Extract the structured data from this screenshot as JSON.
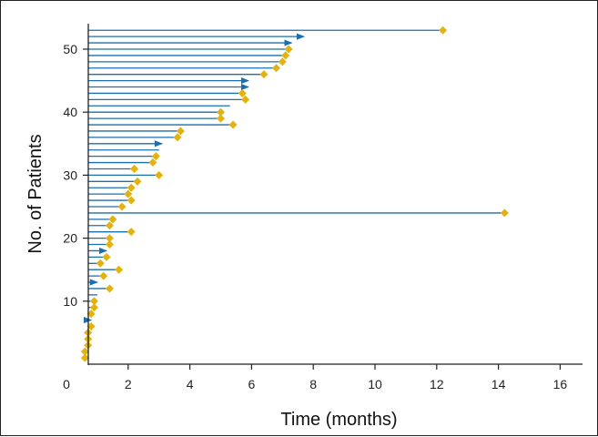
{
  "chart_data": {
    "type": "swimmer",
    "xlabel": "Time (months)",
    "ylabel": "No. of Patients",
    "xlim": [
      0,
      16
    ],
    "ylim": [
      0,
      55
    ],
    "xticks": [
      0,
      2,
      4,
      6,
      8,
      10,
      12,
      14,
      16
    ],
    "yticks": [
      10,
      20,
      30,
      40,
      50
    ],
    "grid": false,
    "colors": {
      "bar": "#1a6fb0",
      "marker": "#e3b20f",
      "axis": "#222222"
    },
    "patients": [
      {
        "id": 1,
        "duration": 0.6,
        "event": 0.6,
        "ongoing": false
      },
      {
        "id": 2,
        "duration": 0.6,
        "event": 0.6,
        "ongoing": false
      },
      {
        "id": 3,
        "duration": 0.7,
        "event": 0.7,
        "ongoing": false
      },
      {
        "id": 4,
        "duration": 0.7,
        "event": 0.7,
        "ongoing": false
      },
      {
        "id": 5,
        "duration": 0.7,
        "event": 0.7,
        "ongoing": false
      },
      {
        "id": 6,
        "duration": 0.8,
        "event": 0.8,
        "ongoing": false
      },
      {
        "id": 7,
        "duration": 0.8,
        "event": null,
        "ongoing": true
      },
      {
        "id": 8,
        "duration": 0.8,
        "event": 0.8,
        "ongoing": false
      },
      {
        "id": 9,
        "duration": 0.9,
        "event": 0.9,
        "ongoing": false
      },
      {
        "id": 10,
        "duration": 0.9,
        "event": 0.9,
        "ongoing": false
      },
      {
        "id": 11,
        "duration": 1.0,
        "event": null,
        "ongoing": false
      },
      {
        "id": 12,
        "duration": 1.4,
        "event": 1.4,
        "ongoing": false
      },
      {
        "id": 13,
        "duration": 1.0,
        "event": null,
        "ongoing": true
      },
      {
        "id": 14,
        "duration": 1.2,
        "event": 1.2,
        "ongoing": false
      },
      {
        "id": 15,
        "duration": 1.7,
        "event": 1.7,
        "ongoing": false
      },
      {
        "id": 16,
        "duration": 1.1,
        "event": 1.1,
        "ongoing": false
      },
      {
        "id": 17,
        "duration": 1.3,
        "event": 1.3,
        "ongoing": false
      },
      {
        "id": 18,
        "duration": 1.3,
        "event": null,
        "ongoing": true
      },
      {
        "id": 19,
        "duration": 1.4,
        "event": 1.4,
        "ongoing": false
      },
      {
        "id": 20,
        "duration": 1.4,
        "event": 1.4,
        "ongoing": false
      },
      {
        "id": 21,
        "duration": 2.1,
        "event": 2.1,
        "ongoing": false
      },
      {
        "id": 22,
        "duration": 1.4,
        "event": 1.4,
        "ongoing": false
      },
      {
        "id": 23,
        "duration": 1.5,
        "event": 1.5,
        "ongoing": false
      },
      {
        "id": 24,
        "duration": 14.2,
        "event": 14.2,
        "ongoing": false
      },
      {
        "id": 25,
        "duration": 1.8,
        "event": 1.8,
        "ongoing": false
      },
      {
        "id": 26,
        "duration": 2.1,
        "event": 2.1,
        "ongoing": false
      },
      {
        "id": 27,
        "duration": 2.0,
        "event": 2.0,
        "ongoing": false
      },
      {
        "id": 28,
        "duration": 2.1,
        "event": 2.1,
        "ongoing": false
      },
      {
        "id": 29,
        "duration": 2.3,
        "event": 2.3,
        "ongoing": false
      },
      {
        "id": 30,
        "duration": 3.0,
        "event": 3.0,
        "ongoing": false
      },
      {
        "id": 31,
        "duration": 2.2,
        "event": 2.2,
        "ongoing": false
      },
      {
        "id": 32,
        "duration": 2.8,
        "event": 2.8,
        "ongoing": false
      },
      {
        "id": 33,
        "duration": 2.9,
        "event": 2.9,
        "ongoing": false
      },
      {
        "id": 34,
        "duration": 3.0,
        "event": null,
        "ongoing": false
      },
      {
        "id": 35,
        "duration": 3.1,
        "event": null,
        "ongoing": true
      },
      {
        "id": 36,
        "duration": 3.6,
        "event": 3.6,
        "ongoing": false
      },
      {
        "id": 37,
        "duration": 3.7,
        "event": 3.7,
        "ongoing": false
      },
      {
        "id": 38,
        "duration": 5.4,
        "event": 5.4,
        "ongoing": false
      },
      {
        "id": 39,
        "duration": 5.0,
        "event": 5.0,
        "ongoing": false
      },
      {
        "id": 40,
        "duration": 5.0,
        "event": 5.0,
        "ongoing": false
      },
      {
        "id": 41,
        "duration": 5.3,
        "event": null,
        "ongoing": false
      },
      {
        "id": 42,
        "duration": 5.8,
        "event": 5.8,
        "ongoing": false
      },
      {
        "id": 43,
        "duration": 5.7,
        "event": 5.7,
        "ongoing": false
      },
      {
        "id": 44,
        "duration": 5.9,
        "event": null,
        "ongoing": true
      },
      {
        "id": 45,
        "duration": 5.9,
        "event": null,
        "ongoing": true
      },
      {
        "id": 46,
        "duration": 6.4,
        "event": 6.4,
        "ongoing": false
      },
      {
        "id": 47,
        "duration": 6.8,
        "event": 6.8,
        "ongoing": false
      },
      {
        "id": 48,
        "duration": 7.0,
        "event": 7.0,
        "ongoing": false
      },
      {
        "id": 49,
        "duration": 7.1,
        "event": 7.1,
        "ongoing": false
      },
      {
        "id": 50,
        "duration": 7.2,
        "event": 7.2,
        "ongoing": false
      },
      {
        "id": 51,
        "duration": 7.3,
        "event": null,
        "ongoing": true
      },
      {
        "id": 52,
        "duration": 7.7,
        "event": null,
        "ongoing": true
      },
      {
        "id": 53,
        "duration": 12.2,
        "event": 12.2,
        "ongoing": false
      }
    ]
  }
}
